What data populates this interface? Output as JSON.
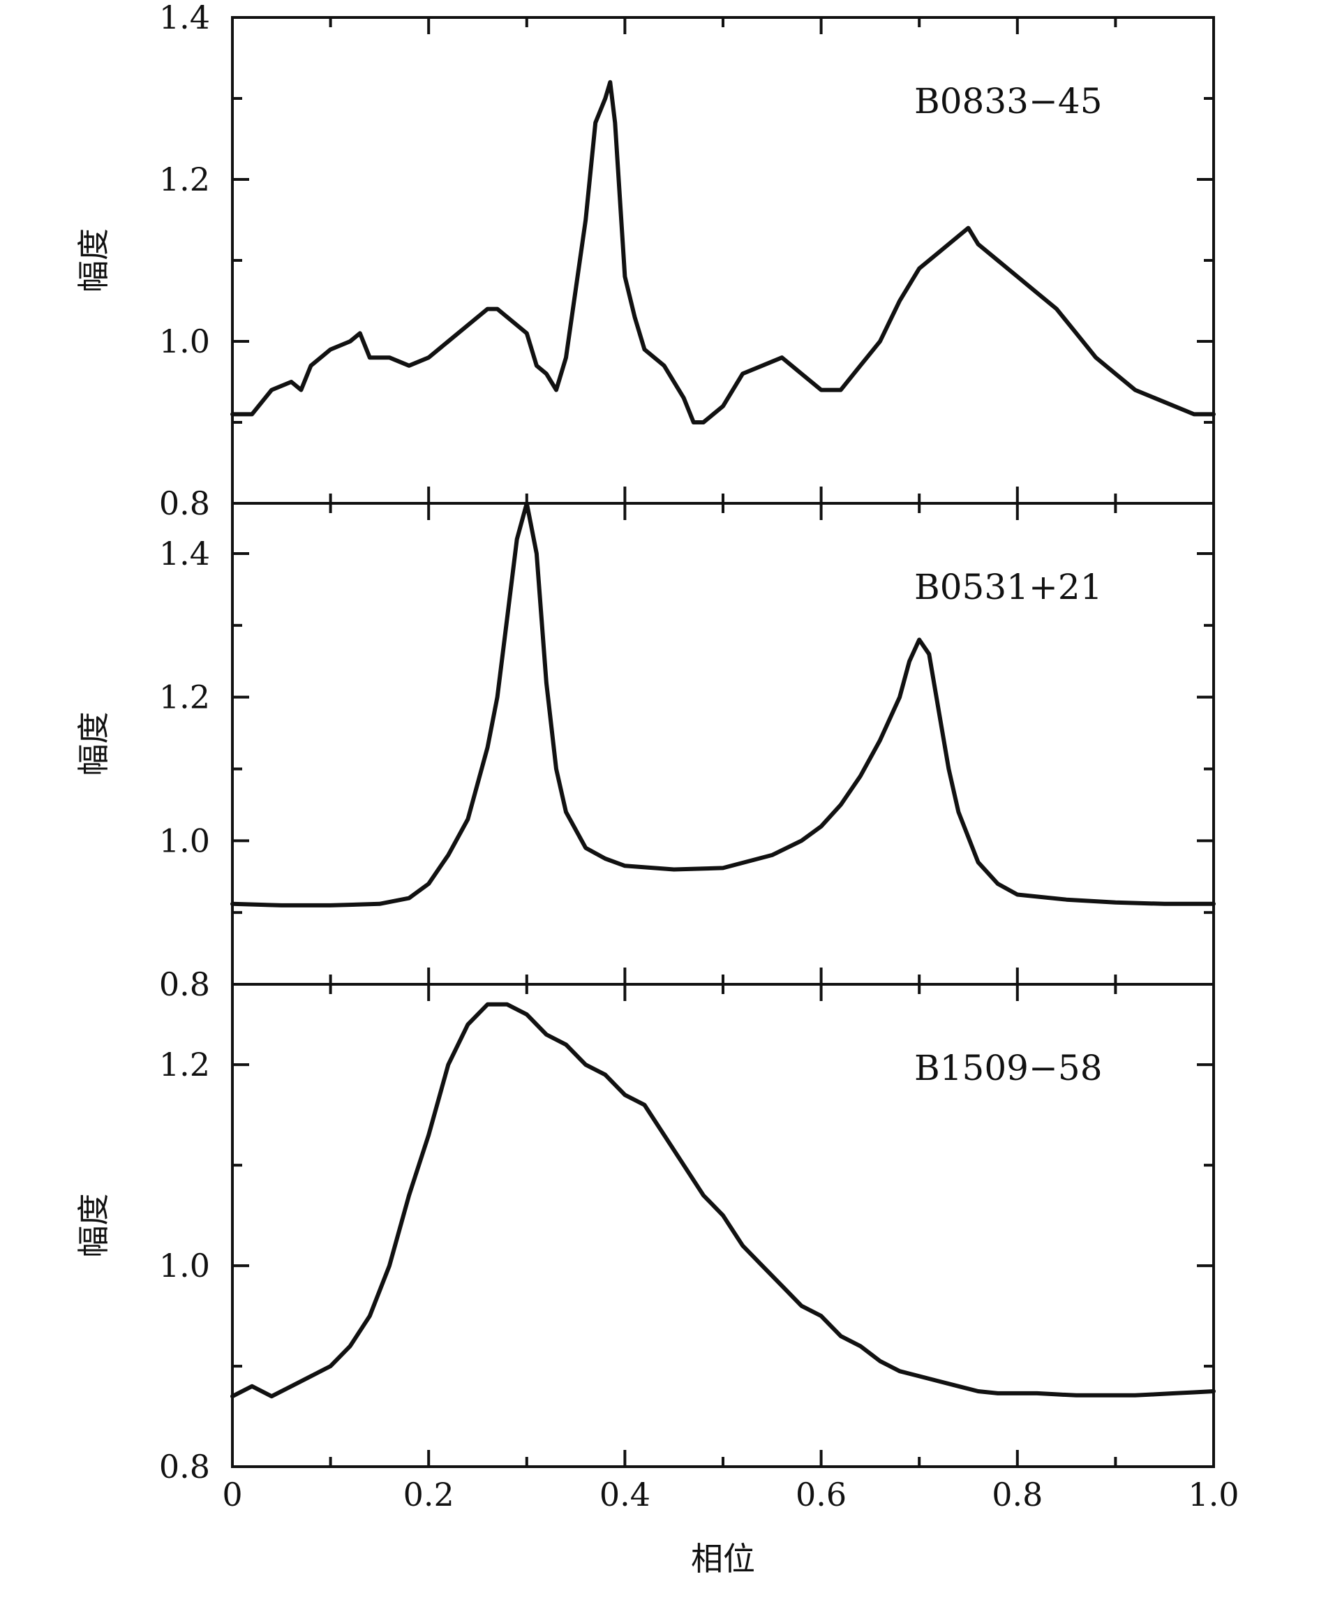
{
  "chart_data": {
    "type": "line",
    "x_label": "相位",
    "x_ticks": [
      "0",
      "0.2",
      "0.4",
      "0.6",
      "0.8",
      "1.0"
    ],
    "xlim": [
      0,
      1
    ],
    "panels": [
      {
        "id": "top",
        "name": "B0833−45",
        "ylabel": "幅度",
        "ylim": [
          0.8,
          1.4
        ],
        "y_ticks": [
          "0.8",
          "1.0",
          "1.2",
          "1.4"
        ],
        "x": [
          0,
          0.02,
          0.04,
          0.06,
          0.07,
          0.08,
          0.1,
          0.12,
          0.13,
          0.14,
          0.16,
          0.18,
          0.2,
          0.22,
          0.24,
          0.26,
          0.27,
          0.28,
          0.3,
          0.31,
          0.32,
          0.33,
          0.34,
          0.36,
          0.37,
          0.38,
          0.385,
          0.39,
          0.4,
          0.41,
          0.42,
          0.44,
          0.46,
          0.47,
          0.48,
          0.5,
          0.52,
          0.54,
          0.56,
          0.58,
          0.6,
          0.62,
          0.64,
          0.66,
          0.68,
          0.7,
          0.72,
          0.74,
          0.75,
          0.76,
          0.78,
          0.8,
          0.82,
          0.84,
          0.86,
          0.88,
          0.9,
          0.92,
          0.94,
          0.96,
          0.98,
          1.0
        ],
        "y": [
          0.91,
          0.91,
          0.94,
          0.95,
          0.94,
          0.97,
          0.99,
          1.0,
          1.01,
          0.98,
          0.98,
          0.97,
          0.98,
          1.0,
          1.02,
          1.04,
          1.04,
          1.03,
          1.01,
          0.97,
          0.96,
          0.94,
          0.98,
          1.15,
          1.27,
          1.3,
          1.32,
          1.27,
          1.08,
          1.03,
          0.99,
          0.97,
          0.93,
          0.9,
          0.9,
          0.92,
          0.96,
          0.97,
          0.98,
          0.96,
          0.94,
          0.94,
          0.97,
          1.0,
          1.05,
          1.09,
          1.11,
          1.13,
          1.14,
          1.12,
          1.1,
          1.08,
          1.06,
          1.04,
          1.01,
          0.98,
          0.96,
          0.94,
          0.93,
          0.92,
          0.91,
          0.91
        ]
      },
      {
        "id": "middle",
        "name": "B0531+21",
        "ylabel": "幅度",
        "ylim": [
          0.8,
          1.47
        ],
        "y_ticks": [
          "0.8",
          "1.0",
          "1.2",
          "1.4"
        ],
        "x": [
          0,
          0.05,
          0.1,
          0.15,
          0.18,
          0.2,
          0.22,
          0.24,
          0.26,
          0.27,
          0.28,
          0.29,
          0.3,
          0.31,
          0.32,
          0.33,
          0.34,
          0.36,
          0.38,
          0.4,
          0.45,
          0.5,
          0.55,
          0.58,
          0.6,
          0.62,
          0.64,
          0.66,
          0.68,
          0.69,
          0.7,
          0.71,
          0.72,
          0.73,
          0.74,
          0.76,
          0.78,
          0.8,
          0.85,
          0.9,
          0.95,
          1.0
        ],
        "y": [
          0.912,
          0.91,
          0.91,
          0.912,
          0.92,
          0.94,
          0.98,
          1.03,
          1.13,
          1.2,
          1.31,
          1.42,
          1.47,
          1.4,
          1.22,
          1.1,
          1.04,
          0.99,
          0.975,
          0.965,
          0.96,
          0.962,
          0.98,
          1.0,
          1.02,
          1.05,
          1.09,
          1.14,
          1.2,
          1.25,
          1.28,
          1.26,
          1.18,
          1.1,
          1.04,
          0.97,
          0.94,
          0.925,
          0.918,
          0.914,
          0.912,
          0.912
        ]
      },
      {
        "id": "bottom",
        "name": "B1509−58",
        "ylabel": "幅度",
        "ylim": [
          0.8,
          1.28
        ],
        "y_ticks": [
          "0.8",
          "1.0",
          "1.2"
        ],
        "x": [
          0,
          0.02,
          0.04,
          0.06,
          0.08,
          0.1,
          0.12,
          0.14,
          0.16,
          0.18,
          0.2,
          0.22,
          0.24,
          0.26,
          0.28,
          0.3,
          0.32,
          0.34,
          0.36,
          0.38,
          0.4,
          0.42,
          0.44,
          0.46,
          0.48,
          0.5,
          0.52,
          0.54,
          0.56,
          0.58,
          0.6,
          0.62,
          0.64,
          0.66,
          0.68,
          0.7,
          0.72,
          0.74,
          0.76,
          0.78,
          0.8,
          0.82,
          0.84,
          0.86,
          0.88,
          0.9,
          0.92,
          0.94,
          0.96,
          0.98,
          1.0
        ],
        "y": [
          0.87,
          0.88,
          0.87,
          0.88,
          0.89,
          0.9,
          0.92,
          0.95,
          1.0,
          1.07,
          1.13,
          1.2,
          1.24,
          1.26,
          1.26,
          1.25,
          1.23,
          1.22,
          1.2,
          1.19,
          1.17,
          1.16,
          1.13,
          1.1,
          1.07,
          1.05,
          1.02,
          1.0,
          0.98,
          0.96,
          0.95,
          0.93,
          0.92,
          0.905,
          0.895,
          0.89,
          0.885,
          0.88,
          0.875,
          0.873,
          0.873,
          0.873,
          0.872,
          0.871,
          0.871,
          0.871,
          0.871,
          0.872,
          0.873,
          0.874,
          0.875
        ]
      }
    ]
  }
}
